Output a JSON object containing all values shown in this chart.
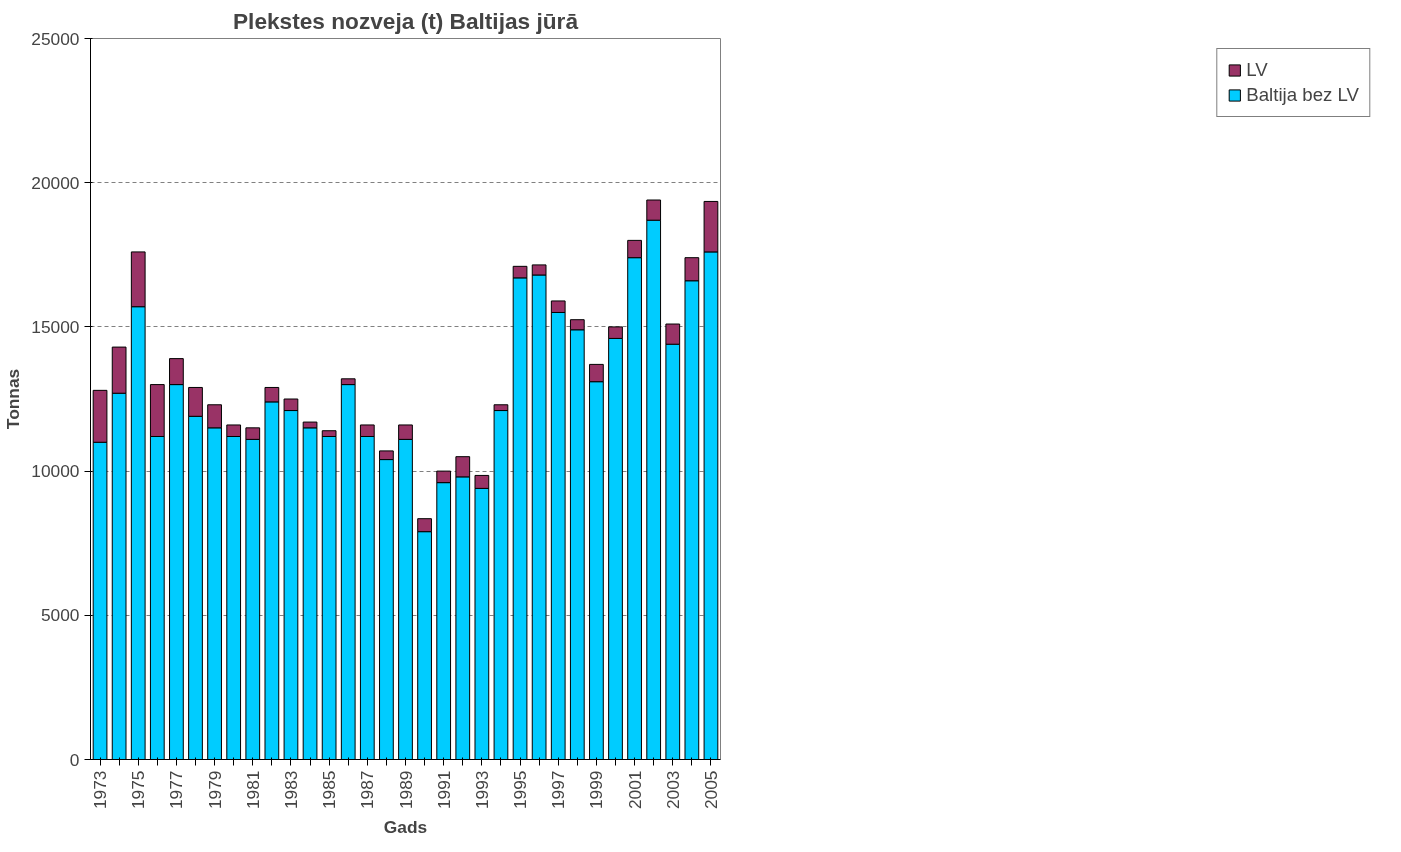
{
  "chart_data": {
    "type": "bar",
    "stacked": true,
    "title": "Plekstes nozveja (t) Baltijas jūrā",
    "xlabel": "Gads",
    "ylabel": "Tonnas",
    "categories": [
      "1973",
      null,
      "1975",
      null,
      "1977",
      null,
      "1979",
      null,
      "1981",
      null,
      "1983",
      null,
      "1985",
      null,
      "1987",
      null,
      "1989",
      null,
      "1991",
      null,
      "1993",
      null,
      "1995",
      null,
      "1997",
      null,
      "1999",
      null,
      "2001",
      null,
      "2003",
      null,
      "2005"
    ],
    "series": [
      {
        "name": "Baltija bez LV",
        "color": "#00ccff",
        "values": [
          11000,
          12700,
          15700,
          11200,
          13000,
          11900,
          11500,
          11200,
          11100,
          12400,
          12100,
          11500,
          11200,
          13000,
          11200,
          10400,
          11100,
          7900,
          9600,
          9800,
          9400,
          12100,
          16700,
          16800,
          15500,
          14900,
          13100,
          14600,
          17400,
          18700,
          14400,
          16600,
          17600
        ]
      },
      {
        "name": "LV",
        "color": "#993366",
        "values": [
          1800,
          1600,
          1900,
          1800,
          900,
          1000,
          800,
          400,
          400,
          500,
          400,
          200,
          200,
          200,
          400,
          300,
          500,
          450,
          400,
          700,
          450,
          200,
          400,
          350,
          400,
          350,
          600,
          400,
          600,
          700,
          700,
          800,
          1750
        ]
      }
    ],
    "ylim": [
      0,
      25000
    ],
    "yticks": [
      0,
      5000,
      10000,
      15000,
      20000,
      25000
    ],
    "grid": "y",
    "legend": "right"
  }
}
